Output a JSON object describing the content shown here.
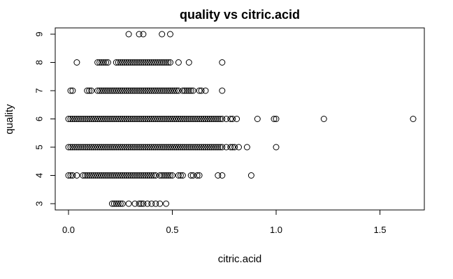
{
  "chart_data": {
    "type": "scatter",
    "title": "quality vs citric.acid",
    "xlabel": "citric.acid",
    "ylabel": "quality",
    "xlim": [
      0,
      1.65
    ],
    "ylim": [
      3,
      9
    ],
    "x_ticks": [
      0.0,
      0.5,
      1.0,
      1.5
    ],
    "x_tick_labels": [
      "0.0",
      "0.5",
      "1.0",
      "1.5"
    ],
    "y_ticks": [
      3,
      4,
      5,
      6,
      7,
      8,
      9
    ],
    "y_tick_labels": [
      "3",
      "4",
      "5",
      "6",
      "7",
      "8",
      "9"
    ],
    "grid": false,
    "marker": "open-circle",
    "series": [
      {
        "points": [
          [
            0.29,
            9
          ],
          [
            0.34,
            9
          ],
          [
            0.36,
            9
          ],
          [
            0.45,
            9
          ],
          [
            0.49,
            9
          ],
          [
            0.04,
            8
          ],
          [
            0.14,
            8
          ],
          [
            0.15,
            8
          ],
          [
            0.16,
            8
          ],
          [
            0.17,
            8
          ],
          [
            0.18,
            8
          ],
          [
            0.19,
            8
          ],
          [
            0.23,
            8
          ],
          [
            0.24,
            8
          ],
          [
            0.25,
            8
          ],
          [
            0.26,
            8
          ],
          [
            0.27,
            8
          ],
          [
            0.28,
            8
          ],
          [
            0.29,
            8
          ],
          [
            0.3,
            8
          ],
          [
            0.31,
            8
          ],
          [
            0.32,
            8
          ],
          [
            0.33,
            8
          ],
          [
            0.34,
            8
          ],
          [
            0.35,
            8
          ],
          [
            0.36,
            8
          ],
          [
            0.37,
            8
          ],
          [
            0.38,
            8
          ],
          [
            0.39,
            8
          ],
          [
            0.4,
            8
          ],
          [
            0.41,
            8
          ],
          [
            0.42,
            8
          ],
          [
            0.43,
            8
          ],
          [
            0.44,
            8
          ],
          [
            0.45,
            8
          ],
          [
            0.46,
            8
          ],
          [
            0.47,
            8
          ],
          [
            0.48,
            8
          ],
          [
            0.49,
            8
          ],
          [
            0.53,
            8
          ],
          [
            0.58,
            8
          ],
          [
            0.74,
            8
          ],
          [
            0.01,
            7
          ],
          [
            0.02,
            7
          ],
          [
            0.09,
            7
          ],
          [
            0.1,
            7
          ],
          [
            0.11,
            7
          ],
          [
            0.14,
            7
          ],
          [
            0.15,
            7
          ],
          [
            0.16,
            7
          ],
          [
            0.17,
            7
          ],
          [
            0.18,
            7
          ],
          [
            0.19,
            7
          ],
          [
            0.2,
            7
          ],
          [
            0.21,
            7
          ],
          [
            0.22,
            7
          ],
          [
            0.23,
            7
          ],
          [
            0.24,
            7
          ],
          [
            0.25,
            7
          ],
          [
            0.26,
            7
          ],
          [
            0.27,
            7
          ],
          [
            0.28,
            7
          ],
          [
            0.29,
            7
          ],
          [
            0.3,
            7
          ],
          [
            0.31,
            7
          ],
          [
            0.32,
            7
          ],
          [
            0.33,
            7
          ],
          [
            0.34,
            7
          ],
          [
            0.35,
            7
          ],
          [
            0.36,
            7
          ],
          [
            0.37,
            7
          ],
          [
            0.38,
            7
          ],
          [
            0.39,
            7
          ],
          [
            0.4,
            7
          ],
          [
            0.41,
            7
          ],
          [
            0.42,
            7
          ],
          [
            0.43,
            7
          ],
          [
            0.44,
            7
          ],
          [
            0.45,
            7
          ],
          [
            0.46,
            7
          ],
          [
            0.47,
            7
          ],
          [
            0.48,
            7
          ],
          [
            0.49,
            7
          ],
          [
            0.5,
            7
          ],
          [
            0.51,
            7
          ],
          [
            0.52,
            7
          ],
          [
            0.53,
            7
          ],
          [
            0.55,
            7
          ],
          [
            0.56,
            7
          ],
          [
            0.57,
            7
          ],
          [
            0.58,
            7
          ],
          [
            0.59,
            7
          ],
          [
            0.6,
            7
          ],
          [
            0.63,
            7
          ],
          [
            0.64,
            7
          ],
          [
            0.66,
            7
          ],
          [
            0.74,
            7
          ],
          [
            0.0,
            6
          ],
          [
            0.01,
            6
          ],
          [
            0.02,
            6
          ],
          [
            0.03,
            6
          ],
          [
            0.04,
            6
          ],
          [
            0.05,
            6
          ],
          [
            0.06,
            6
          ],
          [
            0.07,
            6
          ],
          [
            0.08,
            6
          ],
          [
            0.09,
            6
          ],
          [
            0.1,
            6
          ],
          [
            0.11,
            6
          ],
          [
            0.12,
            6
          ],
          [
            0.13,
            6
          ],
          [
            0.14,
            6
          ],
          [
            0.15,
            6
          ],
          [
            0.16,
            6
          ],
          [
            0.17,
            6
          ],
          [
            0.18,
            6
          ],
          [
            0.19,
            6
          ],
          [
            0.2,
            6
          ],
          [
            0.21,
            6
          ],
          [
            0.22,
            6
          ],
          [
            0.23,
            6
          ],
          [
            0.24,
            6
          ],
          [
            0.25,
            6
          ],
          [
            0.26,
            6
          ],
          [
            0.27,
            6
          ],
          [
            0.28,
            6
          ],
          [
            0.29,
            6
          ],
          [
            0.3,
            6
          ],
          [
            0.31,
            6
          ],
          [
            0.32,
            6
          ],
          [
            0.33,
            6
          ],
          [
            0.34,
            6
          ],
          [
            0.35,
            6
          ],
          [
            0.36,
            6
          ],
          [
            0.37,
            6
          ],
          [
            0.38,
            6
          ],
          [
            0.39,
            6
          ],
          [
            0.4,
            6
          ],
          [
            0.41,
            6
          ],
          [
            0.42,
            6
          ],
          [
            0.43,
            6
          ],
          [
            0.44,
            6
          ],
          [
            0.45,
            6
          ],
          [
            0.46,
            6
          ],
          [
            0.47,
            6
          ],
          [
            0.48,
            6
          ],
          [
            0.49,
            6
          ],
          [
            0.5,
            6
          ],
          [
            0.51,
            6
          ],
          [
            0.52,
            6
          ],
          [
            0.53,
            6
          ],
          [
            0.54,
            6
          ],
          [
            0.55,
            6
          ],
          [
            0.56,
            6
          ],
          [
            0.57,
            6
          ],
          [
            0.58,
            6
          ],
          [
            0.59,
            6
          ],
          [
            0.6,
            6
          ],
          [
            0.61,
            6
          ],
          [
            0.62,
            6
          ],
          [
            0.63,
            6
          ],
          [
            0.64,
            6
          ],
          [
            0.65,
            6
          ],
          [
            0.66,
            6
          ],
          [
            0.67,
            6
          ],
          [
            0.68,
            6
          ],
          [
            0.69,
            6
          ],
          [
            0.7,
            6
          ],
          [
            0.71,
            6
          ],
          [
            0.72,
            6
          ],
          [
            0.73,
            6
          ],
          [
            0.74,
            6
          ],
          [
            0.76,
            6
          ],
          [
            0.78,
            6
          ],
          [
            0.79,
            6
          ],
          [
            0.81,
            6
          ],
          [
            0.91,
            6
          ],
          [
            0.99,
            6
          ],
          [
            1.0,
            6
          ],
          [
            1.23,
            6
          ],
          [
            1.66,
            6
          ],
          [
            0.0,
            5
          ],
          [
            0.01,
            5
          ],
          [
            0.02,
            5
          ],
          [
            0.03,
            5
          ],
          [
            0.04,
            5
          ],
          [
            0.05,
            5
          ],
          [
            0.06,
            5
          ],
          [
            0.07,
            5
          ],
          [
            0.08,
            5
          ],
          [
            0.09,
            5
          ],
          [
            0.1,
            5
          ],
          [
            0.11,
            5
          ],
          [
            0.12,
            5
          ],
          [
            0.13,
            5
          ],
          [
            0.14,
            5
          ],
          [
            0.15,
            5
          ],
          [
            0.16,
            5
          ],
          [
            0.17,
            5
          ],
          [
            0.18,
            5
          ],
          [
            0.19,
            5
          ],
          [
            0.2,
            5
          ],
          [
            0.21,
            5
          ],
          [
            0.22,
            5
          ],
          [
            0.23,
            5
          ],
          [
            0.24,
            5
          ],
          [
            0.25,
            5
          ],
          [
            0.26,
            5
          ],
          [
            0.27,
            5
          ],
          [
            0.28,
            5
          ],
          [
            0.29,
            5
          ],
          [
            0.3,
            5
          ],
          [
            0.31,
            5
          ],
          [
            0.32,
            5
          ],
          [
            0.33,
            5
          ],
          [
            0.34,
            5
          ],
          [
            0.35,
            5
          ],
          [
            0.36,
            5
          ],
          [
            0.37,
            5
          ],
          [
            0.38,
            5
          ],
          [
            0.39,
            5
          ],
          [
            0.4,
            5
          ],
          [
            0.41,
            5
          ],
          [
            0.42,
            5
          ],
          [
            0.43,
            5
          ],
          [
            0.44,
            5
          ],
          [
            0.45,
            5
          ],
          [
            0.46,
            5
          ],
          [
            0.47,
            5
          ],
          [
            0.48,
            5
          ],
          [
            0.49,
            5
          ],
          [
            0.5,
            5
          ],
          [
            0.51,
            5
          ],
          [
            0.52,
            5
          ],
          [
            0.53,
            5
          ],
          [
            0.54,
            5
          ],
          [
            0.55,
            5
          ],
          [
            0.56,
            5
          ],
          [
            0.57,
            5
          ],
          [
            0.58,
            5
          ],
          [
            0.59,
            5
          ],
          [
            0.6,
            5
          ],
          [
            0.61,
            5
          ],
          [
            0.62,
            5
          ],
          [
            0.63,
            5
          ],
          [
            0.64,
            5
          ],
          [
            0.65,
            5
          ],
          [
            0.66,
            5
          ],
          [
            0.67,
            5
          ],
          [
            0.68,
            5
          ],
          [
            0.69,
            5
          ],
          [
            0.7,
            5
          ],
          [
            0.71,
            5
          ],
          [
            0.72,
            5
          ],
          [
            0.73,
            5
          ],
          [
            0.74,
            5
          ],
          [
            0.76,
            5
          ],
          [
            0.78,
            5
          ],
          [
            0.79,
            5
          ],
          [
            0.8,
            5
          ],
          [
            0.82,
            5
          ],
          [
            0.86,
            5
          ],
          [
            1.0,
            5
          ],
          [
            0.0,
            4
          ],
          [
            0.01,
            4
          ],
          [
            0.02,
            4
          ],
          [
            0.04,
            4
          ],
          [
            0.07,
            4
          ],
          [
            0.08,
            4
          ],
          [
            0.09,
            4
          ],
          [
            0.1,
            4
          ],
          [
            0.11,
            4
          ],
          [
            0.12,
            4
          ],
          [
            0.13,
            4
          ],
          [
            0.14,
            4
          ],
          [
            0.15,
            4
          ],
          [
            0.16,
            4
          ],
          [
            0.17,
            4
          ],
          [
            0.18,
            4
          ],
          [
            0.19,
            4
          ],
          [
            0.2,
            4
          ],
          [
            0.21,
            4
          ],
          [
            0.22,
            4
          ],
          [
            0.23,
            4
          ],
          [
            0.24,
            4
          ],
          [
            0.25,
            4
          ],
          [
            0.26,
            4
          ],
          [
            0.27,
            4
          ],
          [
            0.28,
            4
          ],
          [
            0.29,
            4
          ],
          [
            0.3,
            4
          ],
          [
            0.31,
            4
          ],
          [
            0.32,
            4
          ],
          [
            0.33,
            4
          ],
          [
            0.34,
            4
          ],
          [
            0.35,
            4
          ],
          [
            0.36,
            4
          ],
          [
            0.37,
            4
          ],
          [
            0.38,
            4
          ],
          [
            0.39,
            4
          ],
          [
            0.4,
            4
          ],
          [
            0.41,
            4
          ],
          [
            0.42,
            4
          ],
          [
            0.44,
            4
          ],
          [
            0.45,
            4
          ],
          [
            0.46,
            4
          ],
          [
            0.47,
            4
          ],
          [
            0.48,
            4
          ],
          [
            0.49,
            4
          ],
          [
            0.5,
            4
          ],
          [
            0.53,
            4
          ],
          [
            0.54,
            4
          ],
          [
            0.55,
            4
          ],
          [
            0.59,
            4
          ],
          [
            0.6,
            4
          ],
          [
            0.62,
            4
          ],
          [
            0.63,
            4
          ],
          [
            0.72,
            4
          ],
          [
            0.74,
            4
          ],
          [
            0.88,
            4
          ],
          [
            0.21,
            3
          ],
          [
            0.22,
            3
          ],
          [
            0.23,
            3
          ],
          [
            0.24,
            3
          ],
          [
            0.25,
            3
          ],
          [
            0.26,
            3
          ],
          [
            0.29,
            3
          ],
          [
            0.32,
            3
          ],
          [
            0.34,
            3
          ],
          [
            0.35,
            3
          ],
          [
            0.36,
            3
          ],
          [
            0.38,
            3
          ],
          [
            0.4,
            3
          ],
          [
            0.42,
            3
          ],
          [
            0.44,
            3
          ],
          [
            0.47,
            3
          ]
        ]
      }
    ]
  }
}
